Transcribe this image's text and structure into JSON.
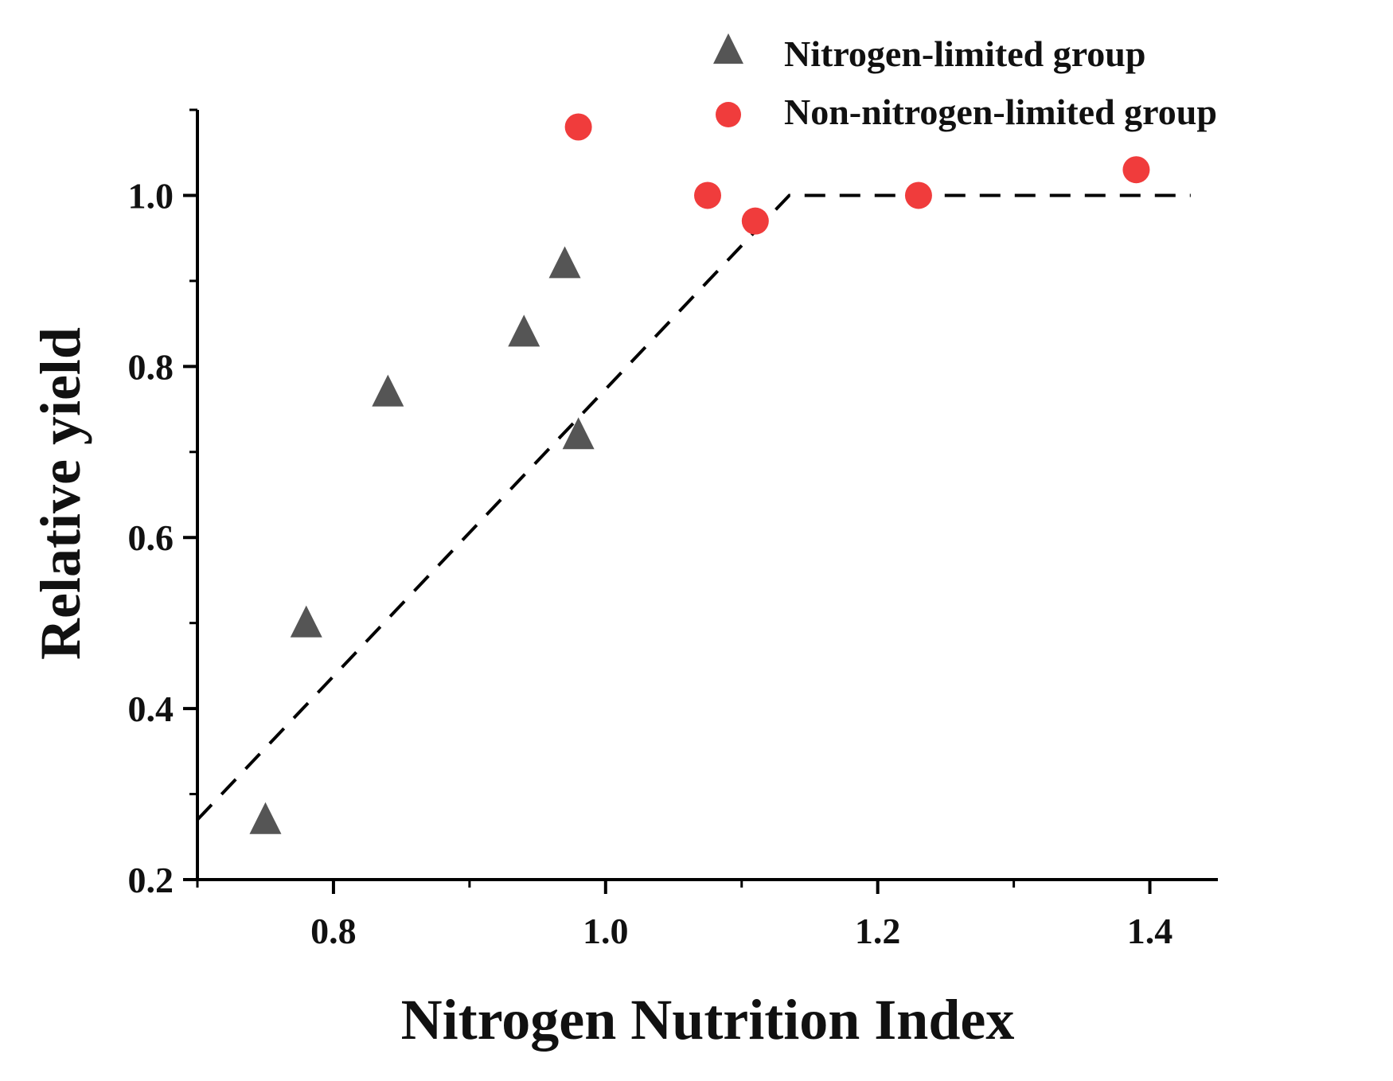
{
  "chart_data": {
    "type": "scatter",
    "title": "",
    "xlabel": "Nitrogen Nutrition Index",
    "ylabel": "Relative yield",
    "xlim": [
      0.7,
      1.45
    ],
    "ylim": [
      0.2,
      1.1
    ],
    "x_ticks": [
      0.8,
      1.0,
      1.2,
      1.4
    ],
    "x_tick_labels": [
      "0.8",
      "1.0",
      "1.2",
      "1.4"
    ],
    "x_minor_ticks": [
      0.7,
      0.9,
      1.1,
      1.3
    ],
    "y_ticks": [
      0.2,
      0.4,
      0.6,
      0.8,
      1.0
    ],
    "y_tick_labels": [
      "0.2",
      "0.4",
      "0.6",
      "0.8",
      "1.0"
    ],
    "y_minor_ticks": [
      0.3,
      0.5,
      0.7,
      0.9,
      1.1
    ],
    "grid": false,
    "legend_position": "top-right",
    "series": [
      {
        "name": "Nitrogen-limited group",
        "marker": "triangle",
        "color": "#555555",
        "points": [
          {
            "x": 0.75,
            "y": 0.27
          },
          {
            "x": 0.78,
            "y": 0.5
          },
          {
            "x": 0.84,
            "y": 0.77
          },
          {
            "x": 0.94,
            "y": 0.84
          },
          {
            "x": 0.97,
            "y": 0.92
          },
          {
            "x": 0.98,
            "y": 0.72
          }
        ]
      },
      {
        "name": "Non-nitrogen-limited group",
        "marker": "circle",
        "color": "#f03c3c",
        "points": [
          {
            "x": 0.98,
            "y": 1.08
          },
          {
            "x": 1.075,
            "y": 1.0
          },
          {
            "x": 1.11,
            "y": 0.97
          },
          {
            "x": 1.23,
            "y": 1.0
          },
          {
            "x": 1.39,
            "y": 1.03
          }
        ]
      }
    ],
    "fit_line": {
      "style": "dashed",
      "color": "#000000",
      "points": [
        {
          "x": 0.7,
          "y": 0.27
        },
        {
          "x": 1.135,
          "y": 1.0
        },
        {
          "x": 1.43,
          "y": 1.0
        }
      ]
    }
  }
}
